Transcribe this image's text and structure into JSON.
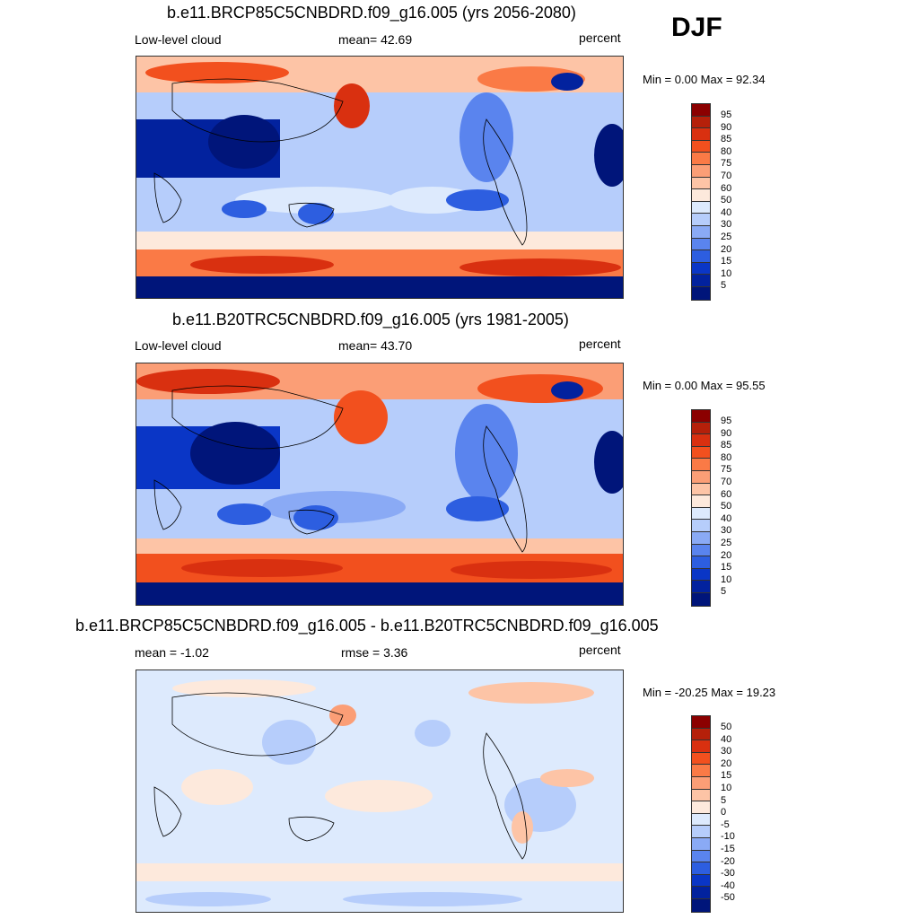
{
  "season": "DJF",
  "panels": [
    {
      "title": "b.e11.BRCP85C5CNBDRD.f09_g16.005 (yrs 2056-2080)",
      "left_label": "Low-level cloud",
      "center_label": "mean=  42.69",
      "units": "percent",
      "minmax": "Min =    0.00 Max =  92.34",
      "kind": "abs"
    },
    {
      "title": "b.e11.B20TRC5CNBDRD.f09_g16.005 (yrs 1981-2005)",
      "left_label": "Low-level cloud",
      "center_label": "mean=  43.70",
      "units": "percent",
      "minmax": "Min =    0.00 Max =  95.55",
      "kind": "abs"
    },
    {
      "title": "b.e11.BRCP85C5CNBDRD.f09_g16.005 - b.e11.B20TRC5CNBDRD.f09_g16.005",
      "left_label": "mean =  -1.02",
      "center_label": "rmse =   3.36",
      "units": "percent",
      "minmax": "Min = -20.25 Max =  19.23",
      "kind": "diff"
    }
  ],
  "colorbars": {
    "abs_levels": [
      "95",
      "90",
      "85",
      "80",
      "75",
      "70",
      "60",
      "50",
      "40",
      "30",
      "25",
      "20",
      "15",
      "10",
      "5"
    ],
    "diff_levels": [
      "50",
      "40",
      "30",
      "20",
      "15",
      "10",
      "5",
      "0",
      "-5",
      "-10",
      "-15",
      "-20",
      "-30",
      "-40",
      "-50"
    ],
    "colors": [
      "#8b0000",
      "#b5200a",
      "#d93010",
      "#f2501e",
      "#fa7a46",
      "#fb9e76",
      "#fdc4a6",
      "#fde9dc",
      "#ddeafd",
      "#b6cdfb",
      "#8aaaf5",
      "#5a84ee",
      "#2d5ee0",
      "#0a36c6",
      "#02229e",
      "#00157a"
    ]
  }
}
